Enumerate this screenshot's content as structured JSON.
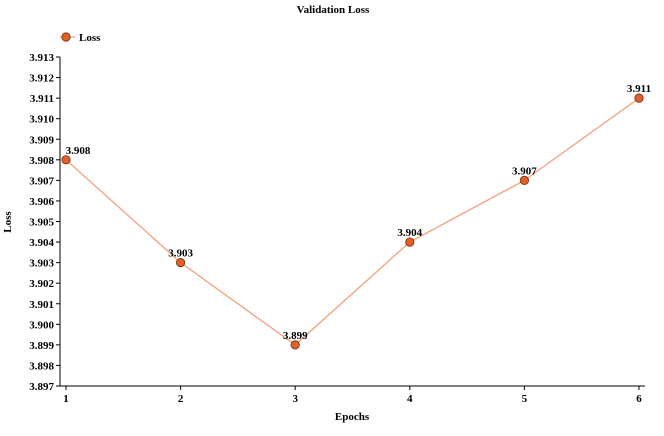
{
  "chart_data": {
    "type": "line",
    "title": "Validation Loss",
    "xlabel": "Epochs",
    "ylabel": "Loss",
    "x": [
      1,
      2,
      3,
      4,
      5,
      6
    ],
    "xlim": [
      1,
      6
    ],
    "ylim": [
      3.897,
      3.913
    ],
    "yticks": [
      "3.897",
      "3.898",
      "3.899",
      "3.900",
      "3.901",
      "3.902",
      "3.903",
      "3.904",
      "3.905",
      "3.906",
      "3.907",
      "3.908",
      "3.909",
      "3.910",
      "3.911",
      "3.912",
      "3.913"
    ],
    "series": [
      {
        "name": "Loss",
        "values": [
          3.908,
          3.903,
          3.899,
          3.904,
          3.907,
          3.911
        ],
        "labels": [
          "3.908",
          "3.903",
          "3.899",
          "3.904",
          "3.907",
          "3.911"
        ]
      }
    ],
    "legend": "top-left",
    "grid": false,
    "colors": {
      "line": "#f4a07a",
      "marker_fill": "#e0602a",
      "marker_stroke": "#7a2d10"
    }
  }
}
